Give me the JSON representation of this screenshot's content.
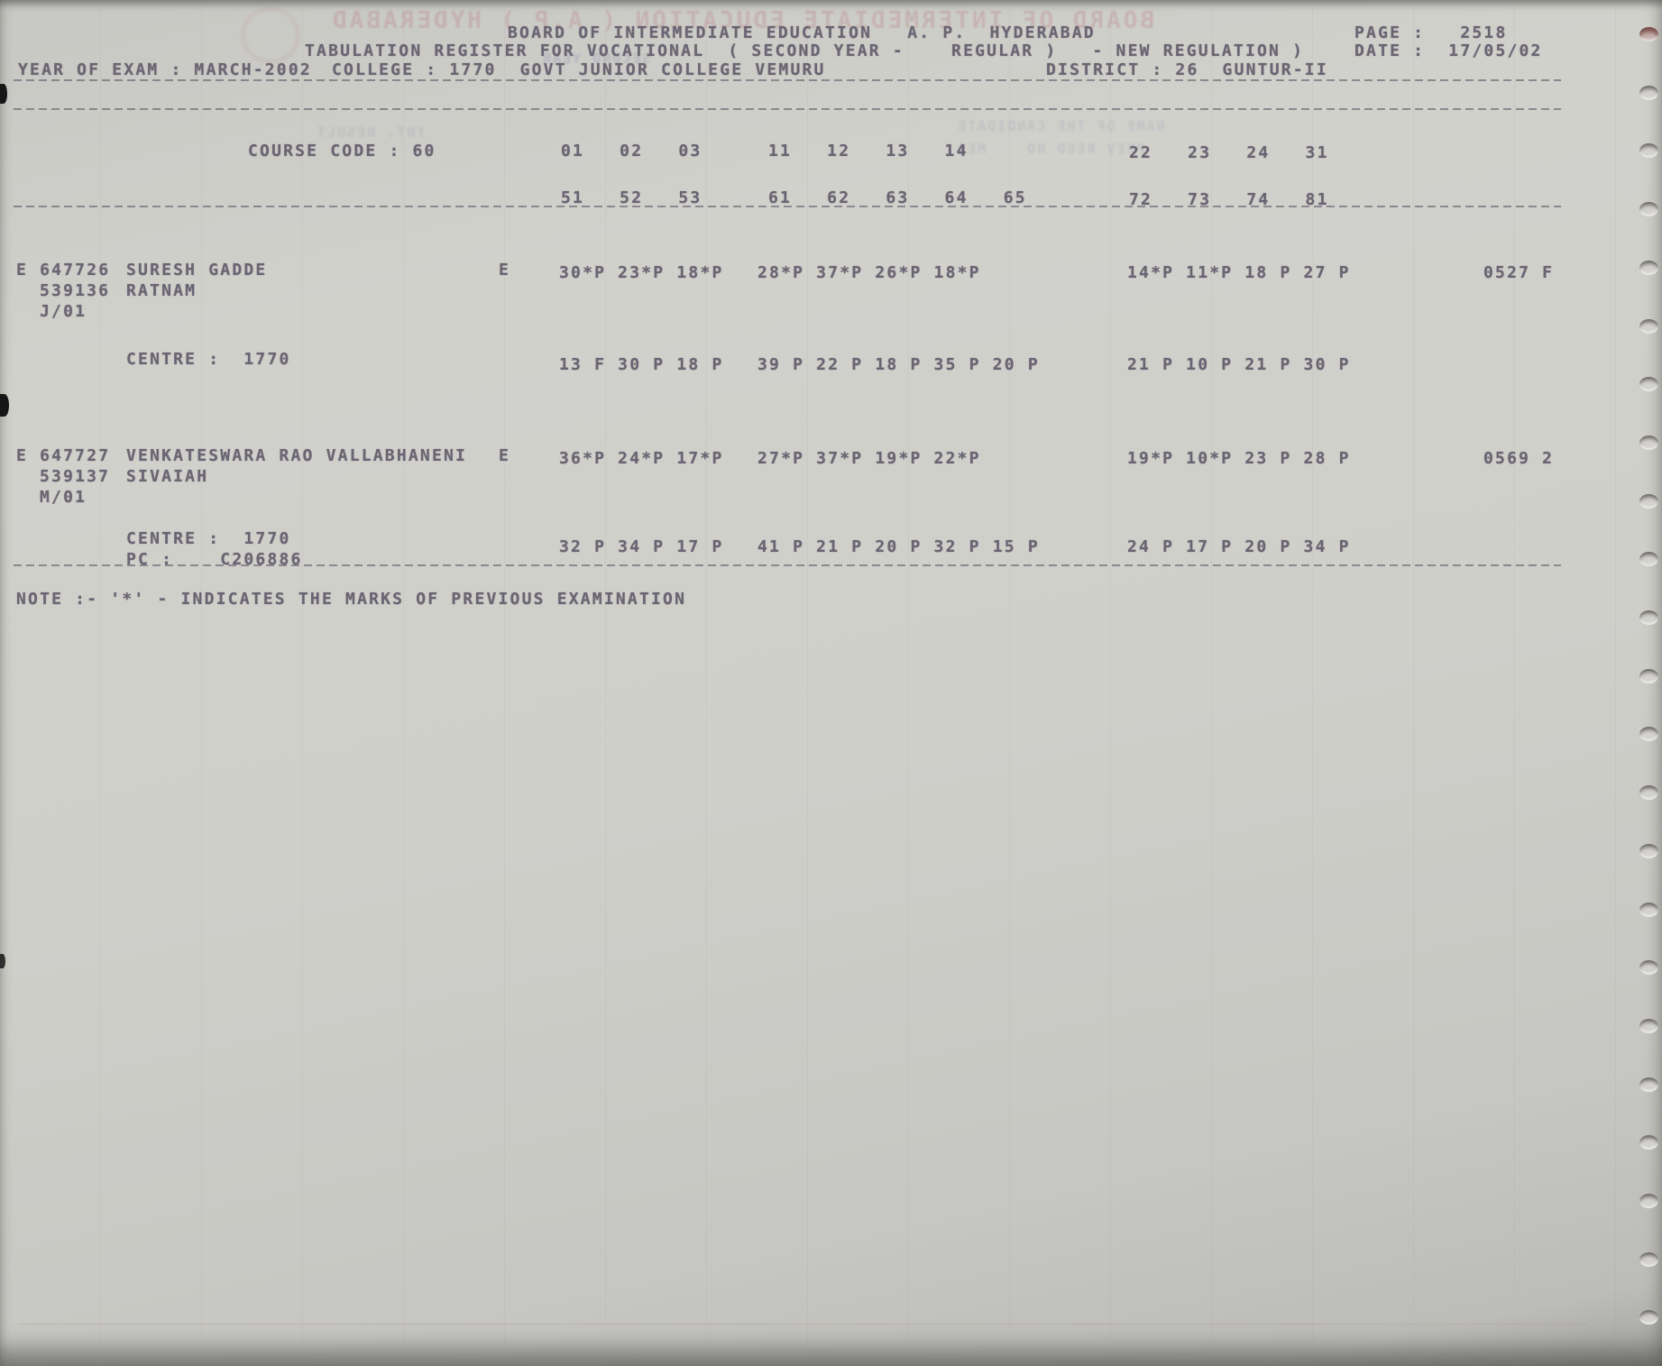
{
  "colors": {
    "paper": "#cfcfca",
    "ink": "#6b6472"
  },
  "header": {
    "board_line": "BOARD OF INTERMEDIATE EDUCATION   A. P.  HYDERABAD",
    "page": "PAGE :   2518",
    "register_line": "TABULATION REGISTER FOR VOCATIONAL  ( SECOND YEAR -    REGULAR )   - NEW REGULATION )",
    "date": "DATE :  17/05/02",
    "year_of_exam": "YEAR OF EXAM : MARCH-2002",
    "college": "COLLEGE : 1770  GOVT JUNIOR COLLEGE VEMURU",
    "district": "DISTRICT : 26  GUNTUR-II"
  },
  "course": {
    "label": "COURSE CODE : 60",
    "codes_row1": [
      "01   02   03",
      "11   12   13   14",
      "22   23   24   31"
    ],
    "codes_row2": [
      "51   52   53",
      "61   62   63   64   65",
      "72   73   74   81"
    ]
  },
  "students": [
    {
      "reg": [
        "E 647726",
        "539136",
        "J/01"
      ],
      "name": [
        "SURESH GADDE",
        "RATNAM"
      ],
      "medium": "E",
      "exam_marks": [
        "30*P 23*P 18*P",
        "28*P 37*P 26*P 18*P",
        "14*P 11*P 18 P 27 P"
      ],
      "total": "0527 F",
      "centre": [
        "CENTRE :  1770",
        ""
      ],
      "centre_marks": [
        "13 F 30 P 18 P",
        "39 P 22 P 18 P 35 P 20 P",
        "21 P 10 P 21 P 30 P"
      ]
    },
    {
      "reg": [
        "E 647727",
        "539137",
        "M/01"
      ],
      "name": [
        "VENKATESWARA RAO VALLABHANENI",
        "SIVAIAH"
      ],
      "medium": "E",
      "exam_marks": [
        "36*P 24*P 17*P",
        "27*P 37*P 19*P 22*P",
        "19*P 10*P 23 P 28 P"
      ],
      "total": "0569 2",
      "centre": [
        "CENTRE :  1770",
        "PC :    C206886"
      ],
      "centre_marks": [
        "32 P 34 P 17 P",
        "41 P 21 P 20 P 32 P 15 P",
        "24 P 17 P 20 P 34 P"
      ]
    }
  ],
  "note": "NOTE :- '*' - INDICATES THE MARKS OF PREVIOUS EXAMINATION",
  "ghost": {
    "board_reverse": "BOARD OF INTERMEDIATE EDUCATION ( A.P ) HYDERABAD",
    "second_year": "SECOND YEAR",
    "candidate_header": "NAME OF THE CANDIDATE",
    "prev_regd": "PREV REGD NO    MED",
    "total_col": "TOT. RESULT"
  }
}
